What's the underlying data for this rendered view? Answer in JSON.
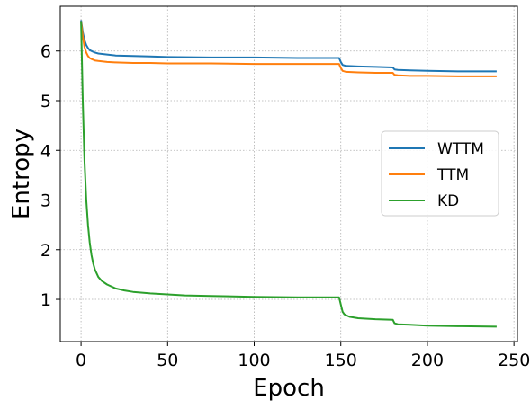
{
  "chart_data": {
    "type": "line",
    "title": "",
    "xlabel": "Epoch",
    "ylabel": "Entropy",
    "xlim": [
      -12,
      252
    ],
    "ylim": [
      0.15,
      6.9
    ],
    "xticks": [
      0,
      50,
      100,
      150,
      200,
      250
    ],
    "yticks": [
      1,
      2,
      3,
      4,
      5,
      6
    ],
    "xtick_labels": [
      "0",
      "50",
      "100",
      "150",
      "200",
      "250"
    ],
    "ytick_labels": [
      "1",
      "2",
      "3",
      "4",
      "5",
      "6"
    ],
    "grid": true,
    "grid_style": "dotted",
    "legend_position": "center-right",
    "series": [
      {
        "name": "WTTM",
        "color": "#1f77b4",
        "x": [
          0,
          1,
          2,
          3,
          4,
          5,
          6,
          8,
          10,
          15,
          20,
          30,
          40,
          50,
          75,
          100,
          125,
          149,
          150,
          151,
          153,
          160,
          170,
          180,
          181,
          183,
          190,
          200,
          220,
          240
        ],
        "y": [
          6.62,
          6.38,
          6.22,
          6.12,
          6.06,
          6.02,
          6.0,
          5.97,
          5.95,
          5.93,
          5.91,
          5.9,
          5.89,
          5.88,
          5.87,
          5.87,
          5.86,
          5.86,
          5.78,
          5.72,
          5.7,
          5.69,
          5.68,
          5.67,
          5.63,
          5.62,
          5.61,
          5.6,
          5.59,
          5.59
        ]
      },
      {
        "name": "TTM",
        "color": "#ff7f0e",
        "x": [
          0,
          1,
          2,
          3,
          4,
          5,
          6,
          8,
          10,
          15,
          20,
          30,
          40,
          50,
          75,
          100,
          125,
          149,
          150,
          151,
          153,
          160,
          170,
          180,
          181,
          183,
          190,
          200,
          220,
          240
        ],
        "y": [
          6.6,
          6.3,
          6.08,
          5.97,
          5.9,
          5.86,
          5.84,
          5.81,
          5.8,
          5.78,
          5.77,
          5.76,
          5.76,
          5.75,
          5.75,
          5.74,
          5.74,
          5.74,
          5.66,
          5.6,
          5.58,
          5.57,
          5.56,
          5.56,
          5.52,
          5.51,
          5.5,
          5.5,
          5.49,
          5.49
        ]
      },
      {
        "name": "KD",
        "color": "#2ca02c",
        "x": [
          0,
          1,
          2,
          3,
          4,
          5,
          6,
          7,
          8,
          10,
          12,
          15,
          20,
          25,
          30,
          40,
          50,
          60,
          75,
          100,
          125,
          149,
          150,
          151,
          152,
          155,
          160,
          170,
          180,
          181,
          183,
          190,
          200,
          220,
          240
        ],
        "y": [
          6.6,
          5.0,
          3.8,
          3.0,
          2.5,
          2.15,
          1.9,
          1.72,
          1.6,
          1.45,
          1.37,
          1.3,
          1.22,
          1.18,
          1.15,
          1.12,
          1.1,
          1.08,
          1.07,
          1.05,
          1.04,
          1.04,
          0.9,
          0.75,
          0.7,
          0.65,
          0.62,
          0.6,
          0.59,
          0.52,
          0.5,
          0.49,
          0.47,
          0.46,
          0.45
        ]
      }
    ]
  }
}
